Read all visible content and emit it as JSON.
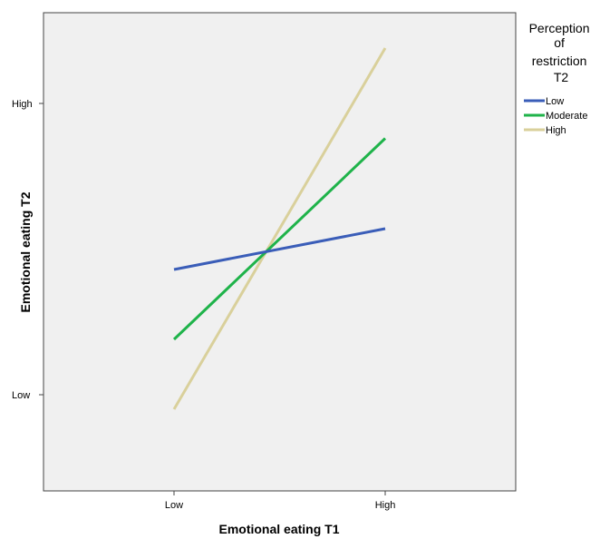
{
  "chart_data": {
    "type": "line",
    "xlabel": "Emotional eating T1",
    "ylabel": "Emotional eating T2",
    "categories": [
      "Low",
      "High"
    ],
    "y_ticks": [
      "Low",
      "High"
    ],
    "y_scale": "relative (Low = 0, High = 1)",
    "ylim": [
      -0.29,
      1.31
    ],
    "grid": false,
    "legend": {
      "title": "Perception of restriction T2",
      "title_lines": [
        "Perception",
        "of",
        "restriction",
        "T2"
      ],
      "position": "right"
    },
    "series": [
      {
        "name": "Low",
        "color": "#3a5db8",
        "values": [
          0.43,
          0.57
        ]
      },
      {
        "name": "Moderate",
        "color": "#1fb34a",
        "values": [
          0.19,
          0.88
        ]
      },
      {
        "name": "High",
        "color": "#d9d09b",
        "values": [
          -0.05,
          1.19
        ]
      }
    ]
  }
}
